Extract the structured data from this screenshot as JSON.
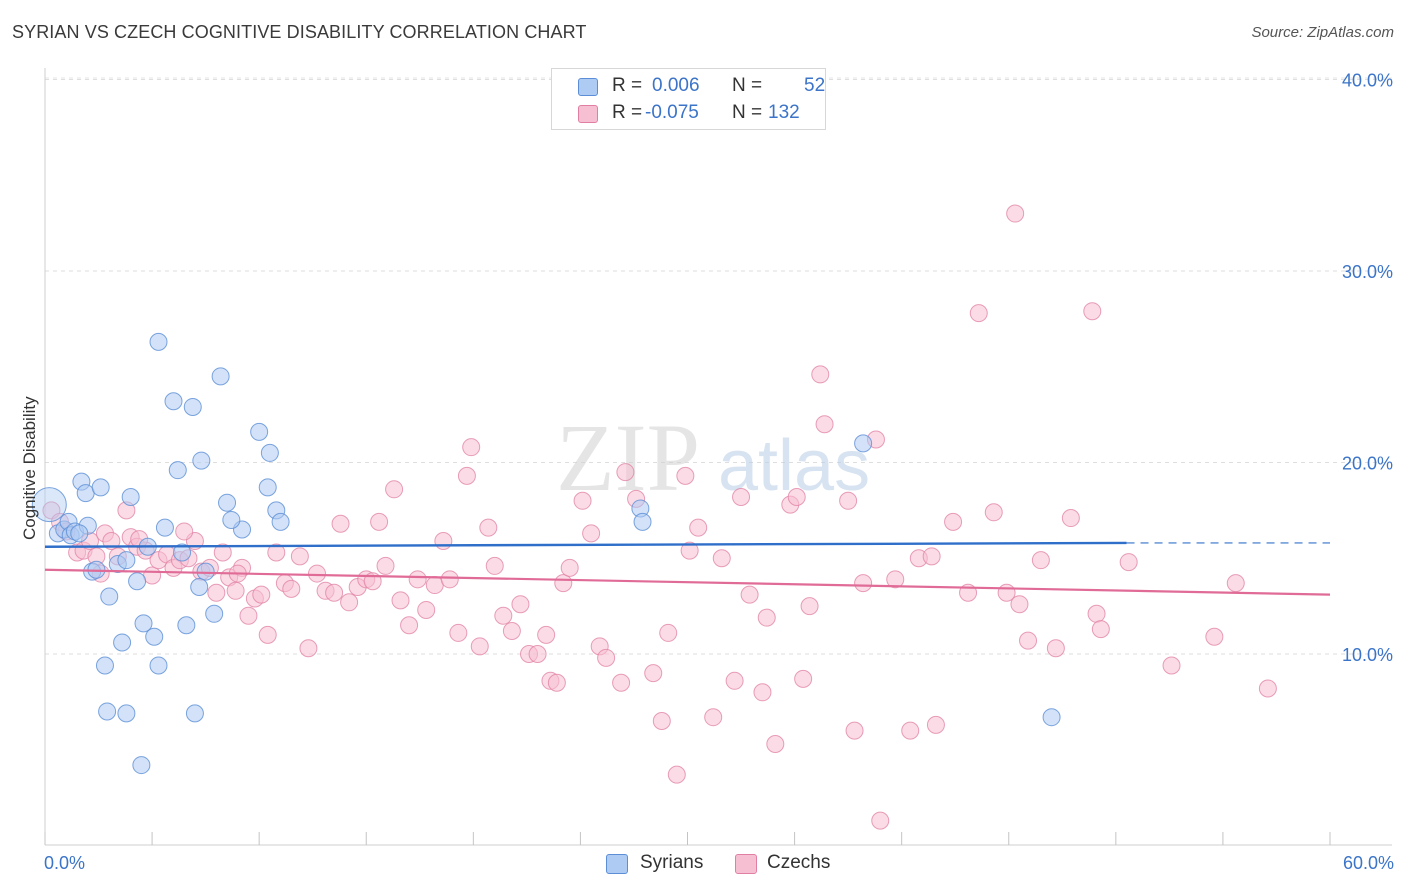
{
  "title": "SYRIAN VS CZECH COGNITIVE DISABILITY CORRELATION CHART",
  "source": "Source: ZipAtlas.com",
  "watermark": {
    "zip": "ZIP",
    "atlas": "atlas"
  },
  "colors": {
    "syrians_fill": "#aecbf3",
    "syrians_stroke": "#5b8ed6",
    "syrians_line": "#2f6fca",
    "czechs_fill": "#f7bfd2",
    "czechs_stroke": "#e07fa3",
    "czechs_line": "#e06b97",
    "axis_text": "#3b74c8"
  },
  "legend": {
    "syrians": {
      "r_label": "R =",
      "r_value": "0.006",
      "n_label": "N =",
      "n_value": "52"
    },
    "czechs": {
      "r_label": "R =",
      "r_value": "-0.075",
      "n_label": "N =",
      "n_value": "132"
    }
  },
  "bottom_legend": {
    "syrians": "Syrians",
    "czechs": "Czechs"
  },
  "chart_data": {
    "type": "scatter",
    "title": "SYRIAN VS CZECH COGNITIVE DISABILITY CORRELATION CHART",
    "xlabel": "",
    "ylabel": "Cognitive Disability",
    "xlim": [
      0,
      60
    ],
    "ylim": [
      0,
      41
    ],
    "x_tick_labels": {
      "min": "0.0%",
      "max": "60.0%"
    },
    "y_ticks": [
      10,
      20,
      30,
      40
    ],
    "y_tick_labels": [
      "10.0%",
      "20.0%",
      "30.0%",
      "40.0%"
    ],
    "grid": true,
    "series": [
      {
        "name": "Syrians",
        "trend": {
          "x0": 0,
          "y0": 15.6,
          "x1": 50.5,
          "y1": 15.8,
          "dashed_to_x": 60,
          "dashed_to_y": 15.8
        },
        "points": [
          [
            0.2,
            17.8
          ],
          [
            0.6,
            16.3
          ],
          [
            0.9,
            16.5
          ],
          [
            1.1,
            16.9
          ],
          [
            1.2,
            16.2
          ],
          [
            1.4,
            16.4
          ],
          [
            1.7,
            19.0
          ],
          [
            1.9,
            18.4
          ],
          [
            2.0,
            16.7
          ],
          [
            2.2,
            14.3
          ],
          [
            2.4,
            14.4
          ],
          [
            2.6,
            18.7
          ],
          [
            3.0,
            13.0
          ],
          [
            3.4,
            14.7
          ],
          [
            3.6,
            10.6
          ],
          [
            3.8,
            14.9
          ],
          [
            4.0,
            18.2
          ],
          [
            4.3,
            13.8
          ],
          [
            4.6,
            11.6
          ],
          [
            4.8,
            15.6
          ],
          [
            5.1,
            10.9
          ],
          [
            5.3,
            9.4
          ],
          [
            5.6,
            16.6
          ],
          [
            6.0,
            23.2
          ],
          [
            6.2,
            19.6
          ],
          [
            6.4,
            15.3
          ],
          [
            6.6,
            11.5
          ],
          [
            6.9,
            22.9
          ],
          [
            7.3,
            20.1
          ],
          [
            7.5,
            14.3
          ],
          [
            7.9,
            12.1
          ],
          [
            8.2,
            24.5
          ],
          [
            8.5,
            17.9
          ],
          [
            9.2,
            16.5
          ],
          [
            10.0,
            21.6
          ],
          [
            10.4,
            18.7
          ],
          [
            10.8,
            17.5
          ],
          [
            5.3,
            26.3
          ],
          [
            7.0,
            6.9
          ],
          [
            4.5,
            4.2
          ],
          [
            2.9,
            7.0
          ],
          [
            3.8,
            6.9
          ],
          [
            2.8,
            9.4
          ],
          [
            7.2,
            13.5
          ],
          [
            8.7,
            17.0
          ],
          [
            10.5,
            20.5
          ],
          [
            11.0,
            16.9
          ],
          [
            27.8,
            17.6
          ],
          [
            27.9,
            16.9
          ],
          [
            38.2,
            21.0
          ],
          [
            47.0,
            6.7
          ],
          [
            1.6,
            16.3
          ]
        ]
      },
      {
        "name": "Czechs",
        "trend": {
          "x0": 0,
          "y0": 14.4,
          "x1": 60,
          "y1": 13.1
        },
        "points": [
          [
            0.3,
            17.5
          ],
          [
            0.7,
            16.9
          ],
          [
            1.0,
            16.4
          ],
          [
            1.5,
            15.3
          ],
          [
            1.8,
            15.4
          ],
          [
            2.1,
            15.9
          ],
          [
            2.4,
            15.1
          ],
          [
            2.8,
            16.3
          ],
          [
            3.1,
            15.9
          ],
          [
            3.4,
            15.1
          ],
          [
            3.8,
            17.5
          ],
          [
            4.0,
            16.1
          ],
          [
            4.3,
            15.6
          ],
          [
            4.7,
            15.4
          ],
          [
            5.0,
            14.1
          ],
          [
            5.3,
            14.9
          ],
          [
            5.7,
            15.2
          ],
          [
            6.0,
            14.5
          ],
          [
            6.3,
            14.9
          ],
          [
            6.7,
            15.0
          ],
          [
            7.0,
            15.9
          ],
          [
            7.3,
            14.3
          ],
          [
            7.7,
            14.5
          ],
          [
            8.0,
            13.2
          ],
          [
            8.3,
            15.3
          ],
          [
            8.6,
            14.0
          ],
          [
            8.9,
            13.3
          ],
          [
            9.2,
            14.5
          ],
          [
            9.5,
            12.0
          ],
          [
            9.8,
            12.9
          ],
          [
            10.1,
            13.1
          ],
          [
            10.4,
            11.0
          ],
          [
            10.8,
            15.3
          ],
          [
            11.2,
            13.7
          ],
          [
            11.5,
            13.4
          ],
          [
            11.9,
            15.1
          ],
          [
            12.3,
            10.3
          ],
          [
            12.7,
            14.2
          ],
          [
            13.1,
            13.3
          ],
          [
            13.5,
            13.2
          ],
          [
            13.8,
            16.8
          ],
          [
            14.2,
            12.7
          ],
          [
            14.6,
            13.5
          ],
          [
            15.0,
            13.9
          ],
          [
            15.3,
            13.8
          ],
          [
            15.6,
            16.9
          ],
          [
            15.9,
            14.6
          ],
          [
            16.3,
            18.6
          ],
          [
            16.6,
            12.8
          ],
          [
            17.0,
            11.5
          ],
          [
            17.4,
            13.9
          ],
          [
            17.8,
            12.3
          ],
          [
            18.2,
            13.6
          ],
          [
            18.6,
            15.9
          ],
          [
            18.9,
            13.9
          ],
          [
            19.3,
            11.1
          ],
          [
            19.7,
            19.3
          ],
          [
            19.9,
            20.8
          ],
          [
            20.3,
            10.4
          ],
          [
            20.7,
            16.6
          ],
          [
            21.0,
            14.6
          ],
          [
            21.4,
            12.0
          ],
          [
            21.8,
            11.2
          ],
          [
            22.2,
            12.6
          ],
          [
            22.6,
            10.0
          ],
          [
            23.0,
            10.0
          ],
          [
            23.4,
            11.0
          ],
          [
            23.6,
            8.6
          ],
          [
            23.9,
            8.5
          ],
          [
            24.2,
            13.7
          ],
          [
            24.5,
            14.5
          ],
          [
            25.1,
            18.0
          ],
          [
            25.5,
            16.3
          ],
          [
            25.9,
            10.4
          ],
          [
            26.2,
            9.8
          ],
          [
            26.9,
            8.5
          ],
          [
            27.1,
            19.5
          ],
          [
            27.6,
            18.1
          ],
          [
            28.4,
            9.0
          ],
          [
            28.8,
            6.5
          ],
          [
            29.1,
            11.1
          ],
          [
            29.5,
            3.7
          ],
          [
            29.9,
            19.3
          ],
          [
            30.1,
            15.4
          ],
          [
            30.5,
            16.6
          ],
          [
            31.2,
            6.7
          ],
          [
            31.6,
            15.0
          ],
          [
            32.2,
            8.6
          ],
          [
            32.5,
            18.2
          ],
          [
            32.9,
            13.1
          ],
          [
            33.5,
            8.0
          ],
          [
            33.7,
            11.9
          ],
          [
            34.1,
            5.3
          ],
          [
            34.8,
            17.8
          ],
          [
            35.1,
            18.2
          ],
          [
            35.4,
            8.7
          ],
          [
            35.7,
            12.5
          ],
          [
            36.2,
            24.6
          ],
          [
            36.4,
            22.0
          ],
          [
            37.5,
            18.0
          ],
          [
            37.8,
            6.0
          ],
          [
            38.2,
            13.7
          ],
          [
            38.8,
            21.2
          ],
          [
            39.0,
            1.3
          ],
          [
            39.7,
            13.9
          ],
          [
            40.4,
            6.0
          ],
          [
            40.8,
            15.0
          ],
          [
            41.4,
            15.1
          ],
          [
            41.6,
            6.3
          ],
          [
            42.4,
            16.9
          ],
          [
            43.1,
            13.2
          ],
          [
            43.6,
            27.8
          ],
          [
            44.3,
            17.4
          ],
          [
            44.9,
            13.2
          ],
          [
            45.3,
            33.0
          ],
          [
            45.5,
            12.6
          ],
          [
            45.9,
            10.7
          ],
          [
            46.5,
            14.9
          ],
          [
            47.2,
            10.3
          ],
          [
            47.9,
            17.1
          ],
          [
            48.9,
            27.9
          ],
          [
            49.1,
            12.1
          ],
          [
            49.3,
            11.3
          ],
          [
            50.6,
            14.8
          ],
          [
            52.6,
            9.4
          ],
          [
            54.6,
            10.9
          ],
          [
            55.6,
            13.7
          ],
          [
            57.1,
            8.2
          ],
          [
            2.6,
            14.2
          ],
          [
            4.4,
            16.0
          ],
          [
            6.5,
            16.4
          ],
          [
            9.0,
            14.2
          ]
        ]
      }
    ]
  }
}
